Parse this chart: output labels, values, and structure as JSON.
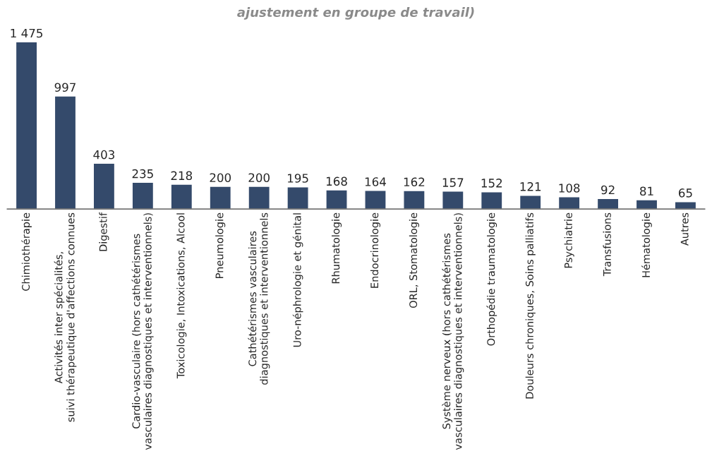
{
  "chart_data": {
    "type": "bar",
    "title": "ajustement en groupe de travail)",
    "categories": [
      "Chimiothérapie",
      "Activités inter spécialités,\nsuivi thérapeutique d'affections connues",
      "Digestif",
      "Cardio-vasculaire (hors cathétérismes\nvasculaires diagnostiques et interventionnels)",
      "Toxicologie, Intoxications, Alcool",
      "Pneumologie",
      "Cathétérismes vasculaires\ndiagnostiques et interventionnels",
      "Uro-néphrologie et génital",
      "Rhumatologie",
      "Endocrinologie",
      "ORL, Stomatologie",
      "Système nerveux (hors cathétérismes\nvasculaires diagnostiques et interventionnels)",
      "Orthopédie traumatologie",
      "Douleurs chroniques, Soins palliatifs",
      "Psychiatrie",
      "Transfusions",
      "Hématologie",
      "Autres"
    ],
    "values": [
      1475,
      997,
      403,
      235,
      218,
      200,
      200,
      195,
      168,
      164,
      162,
      157,
      152,
      121,
      108,
      92,
      81,
      65
    ],
    "value_labels": [
      "1 475",
      "997",
      "403",
      "235",
      "218",
      "200",
      "200",
      "195",
      "168",
      "164",
      "162",
      "157",
      "152",
      "121",
      "108",
      "92",
      "81",
      "65"
    ],
    "color": "#344a6b",
    "tick_labels": "x",
    "grid": false,
    "legend": false
  }
}
